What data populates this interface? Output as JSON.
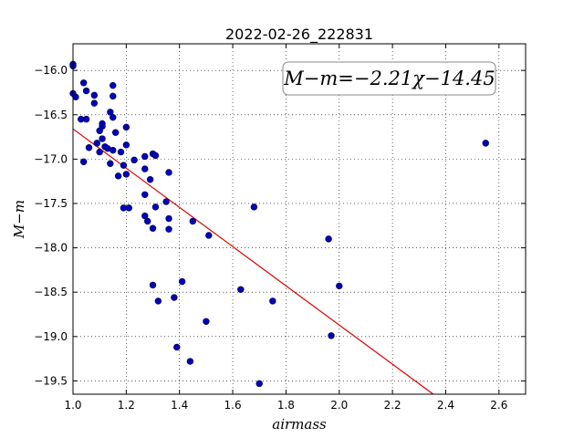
{
  "chart_data": {
    "type": "scatter",
    "title": "2022-02-26_222831",
    "xlabel": "airmass",
    "ylabel": "M−m",
    "xlim": [
      1.0,
      2.7
    ],
    "ylim": [
      -19.65,
      -15.7
    ],
    "xticks": [
      1.0,
      1.2,
      1.4,
      1.6,
      1.8,
      2.0,
      2.2,
      2.4,
      2.6
    ],
    "xtick_labels": [
      "1.0",
      "1.2",
      "1.4",
      "1.6",
      "1.8",
      "2.0",
      "2.2",
      "2.4",
      "2.6"
    ],
    "yticks": [
      -16.0,
      -16.5,
      -17.0,
      -17.5,
      -18.0,
      -18.5,
      -19.0,
      -19.5
    ],
    "ytick_labels": [
      "−16.0",
      "−16.5",
      "−17.0",
      "−17.5",
      "−18.0",
      "−18.5",
      "−19.0",
      "−19.5"
    ],
    "grid": true,
    "annotation": "M−m=−2.21χ−14.45",
    "fit": {
      "slope": -2.21,
      "intercept": -14.45,
      "color": "#dd0000"
    },
    "point_color": "#0000bb",
    "points": [
      [
        1.0,
        -15.93
      ],
      [
        1.0,
        -15.95
      ],
      [
        1.0,
        -16.26
      ],
      [
        1.01,
        -16.3
      ],
      [
        1.03,
        -16.55
      ],
      [
        1.04,
        -16.14
      ],
      [
        1.05,
        -16.23
      ],
      [
        1.05,
        -16.55
      ],
      [
        1.04,
        -17.03
      ],
      [
        1.06,
        -16.87
      ],
      [
        1.08,
        -16.28
      ],
      [
        1.08,
        -16.37
      ],
      [
        1.09,
        -16.82
      ],
      [
        1.1,
        -16.68
      ],
      [
        1.1,
        -16.92
      ],
      [
        1.11,
        -16.6
      ],
      [
        1.11,
        -16.63
      ],
      [
        1.11,
        -16.77
      ],
      [
        1.12,
        -16.86
      ],
      [
        1.13,
        -16.88
      ],
      [
        1.14,
        -16.47
      ],
      [
        1.15,
        -16.17
      ],
      [
        1.15,
        -16.29
      ],
      [
        1.15,
        -16.53
      ],
      [
        1.14,
        -17.05
      ],
      [
        1.15,
        -16.9
      ],
      [
        1.16,
        -16.7
      ],
      [
        1.17,
        -17.19
      ],
      [
        1.18,
        -16.92
      ],
      [
        1.19,
        -17.07
      ],
      [
        1.2,
        -16.64
      ],
      [
        1.2,
        -16.84
      ],
      [
        1.2,
        -17.17
      ],
      [
        1.19,
        -17.55
      ],
      [
        1.21,
        -17.55
      ],
      [
        1.23,
        -17.01
      ],
      [
        1.27,
        -16.97
      ],
      [
        1.27,
        -17.11
      ],
      [
        1.27,
        -17.4
      ],
      [
        1.27,
        -17.64
      ],
      [
        1.28,
        -17.7
      ],
      [
        1.29,
        -17.23
      ],
      [
        1.3,
        -16.94
      ],
      [
        1.31,
        -16.96
      ],
      [
        1.3,
        -17.78
      ],
      [
        1.31,
        -17.54
      ],
      [
        1.35,
        -17.48
      ],
      [
        1.36,
        -17.67
      ],
      [
        1.36,
        -17.79
      ],
      [
        1.36,
        -17.15
      ],
      [
        1.3,
        -18.42
      ],
      [
        1.32,
        -18.6
      ],
      [
        1.38,
        -18.56
      ],
      [
        1.39,
        -19.12
      ],
      [
        1.41,
        -18.38
      ],
      [
        1.44,
        -19.28
      ],
      [
        1.45,
        -17.7
      ],
      [
        1.5,
        -18.83
      ],
      [
        1.51,
        -17.86
      ],
      [
        1.63,
        -18.47
      ],
      [
        1.68,
        -17.54
      ],
      [
        1.7,
        -19.53
      ],
      [
        1.75,
        -18.6
      ],
      [
        1.96,
        -17.9
      ],
      [
        1.97,
        -18.99
      ],
      [
        2.0,
        -18.43
      ],
      [
        2.55,
        -16.82
      ]
    ]
  }
}
